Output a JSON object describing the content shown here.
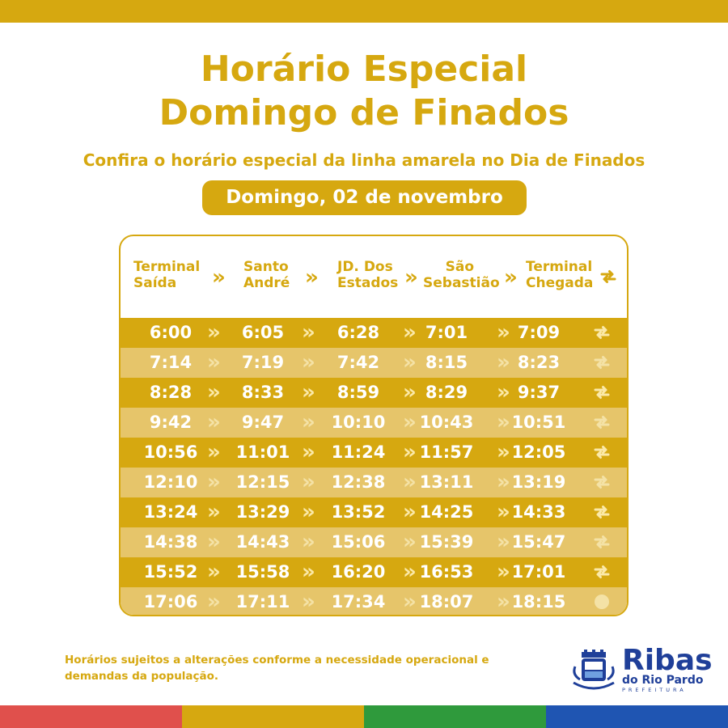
{
  "header": {
    "title_line1": "Horário Especial",
    "title_line2": "Domingo de Finados",
    "subtitle": "Confira o horário especial da linha amarela no Dia de Finados",
    "date": "Domingo, 02 de novembro"
  },
  "table": {
    "columns": [
      {
        "line1": "Terminal",
        "line2": "Saída"
      },
      {
        "line1": "Santo",
        "line2": "André"
      },
      {
        "line1": "JD. Dos",
        "line2": "Estados"
      },
      {
        "line1": "São",
        "line2": "Sebastião"
      },
      {
        "line1": "Terminal",
        "line2": "Chegada"
      }
    ],
    "arrow_glyph": "»",
    "rows": [
      [
        "6:00",
        "6:05",
        "6:28",
        "7:01",
        "7:09"
      ],
      [
        "7:14",
        "7:19",
        "7:42",
        "8:15",
        "8:23"
      ],
      [
        "8:28",
        "8:33",
        "8:59",
        "8:29",
        "9:37"
      ],
      [
        "9:42",
        "9:47",
        "10:10",
        "10:43",
        "10:51"
      ],
      [
        "10:56",
        "11:01",
        "11:24",
        "11:57",
        "12:05"
      ],
      [
        "12:10",
        "12:15",
        "12:38",
        "13:11",
        "13:19"
      ],
      [
        "13:24",
        "13:29",
        "13:52",
        "14:25",
        "14:33"
      ],
      [
        "14:38",
        "14:43",
        "15:06",
        "15:39",
        "15:47"
      ],
      [
        "15:52",
        "15:58",
        "16:20",
        "16:53",
        "17:01"
      ],
      [
        "17:06",
        "17:11",
        "17:34",
        "18:07",
        "18:15"
      ]
    ]
  },
  "footer": {
    "note": "Horários sujeitos a alterações conforme a necessidade operacional e demandas da população."
  },
  "logo": {
    "main": "Ribas",
    "sub": "do Rio Pardo",
    "tag": "PREFEITURA"
  },
  "colors": {
    "primary": "#d6a810",
    "row_dark": "#d6a810",
    "row_light": "#e6c56a",
    "bar_red": "#e0504c",
    "bar_green": "#2f9a3c",
    "bar_blue": "#1f55b2",
    "logo_blue": "#1f3f99"
  }
}
